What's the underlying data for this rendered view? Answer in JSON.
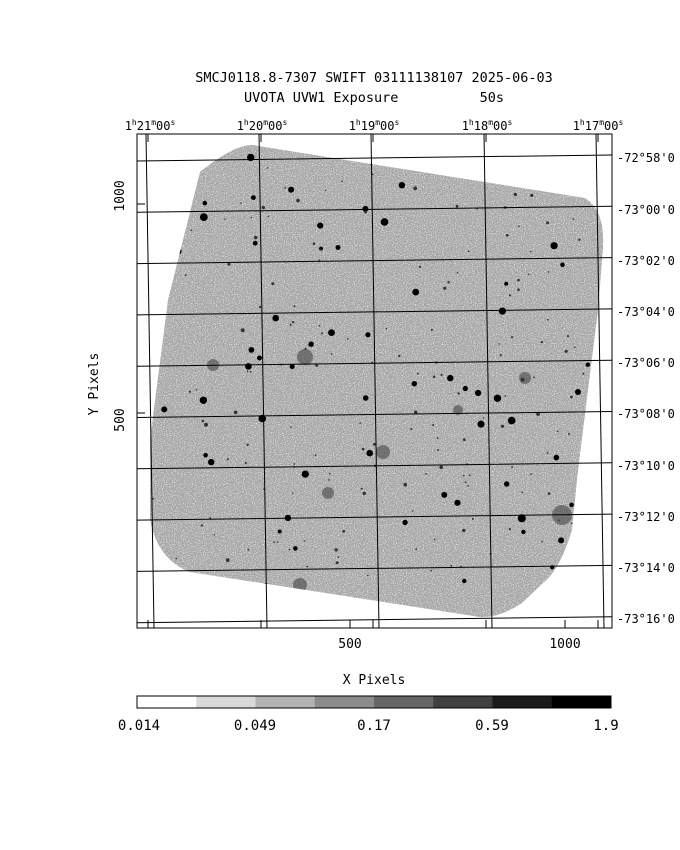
{
  "title_line1": "SMCJ0118.8-7307 SWIFT 03111138107 2025-06-03",
  "title_line2": "UVOTA UVW1 Exposure          50s",
  "ra_ticks": [
    {
      "h": "1",
      "m": "21",
      "s": "00"
    },
    {
      "h": "1",
      "m": "20",
      "s": "00"
    },
    {
      "h": "1",
      "m": "19",
      "s": "00"
    },
    {
      "h": "1",
      "m": "18",
      "s": "00"
    },
    {
      "h": "1",
      "m": "17",
      "s": "00"
    }
  ],
  "dec_ticks": [
    "-72°58'0",
    "-73°00'0",
    "-73°02'0",
    "-73°04'0",
    "-73°06'0",
    "-73°08'0",
    "-73°10'0",
    "-73°12'0",
    "-73°14'0",
    "-73°16'0"
  ],
  "x_axis": {
    "label": "X Pixels",
    "ticks": [
      "500",
      "1000"
    ]
  },
  "y_axis": {
    "label": "Y Pixels",
    "ticks": [
      "1000",
      "500"
    ]
  },
  "colorbar": {
    "labels": [
      "0.014",
      "0.049",
      "0.17",
      "0.59",
      "1.9"
    ],
    "colors": [
      "#ffffff",
      "#d9d9d9",
      "#b3b3b3",
      "#8c8c8c",
      "#666666",
      "#404040",
      "#1a1a1a",
      "#000000"
    ]
  },
  "palette": {
    "sky": "#a6a6a6",
    "grid": "#000000"
  }
}
